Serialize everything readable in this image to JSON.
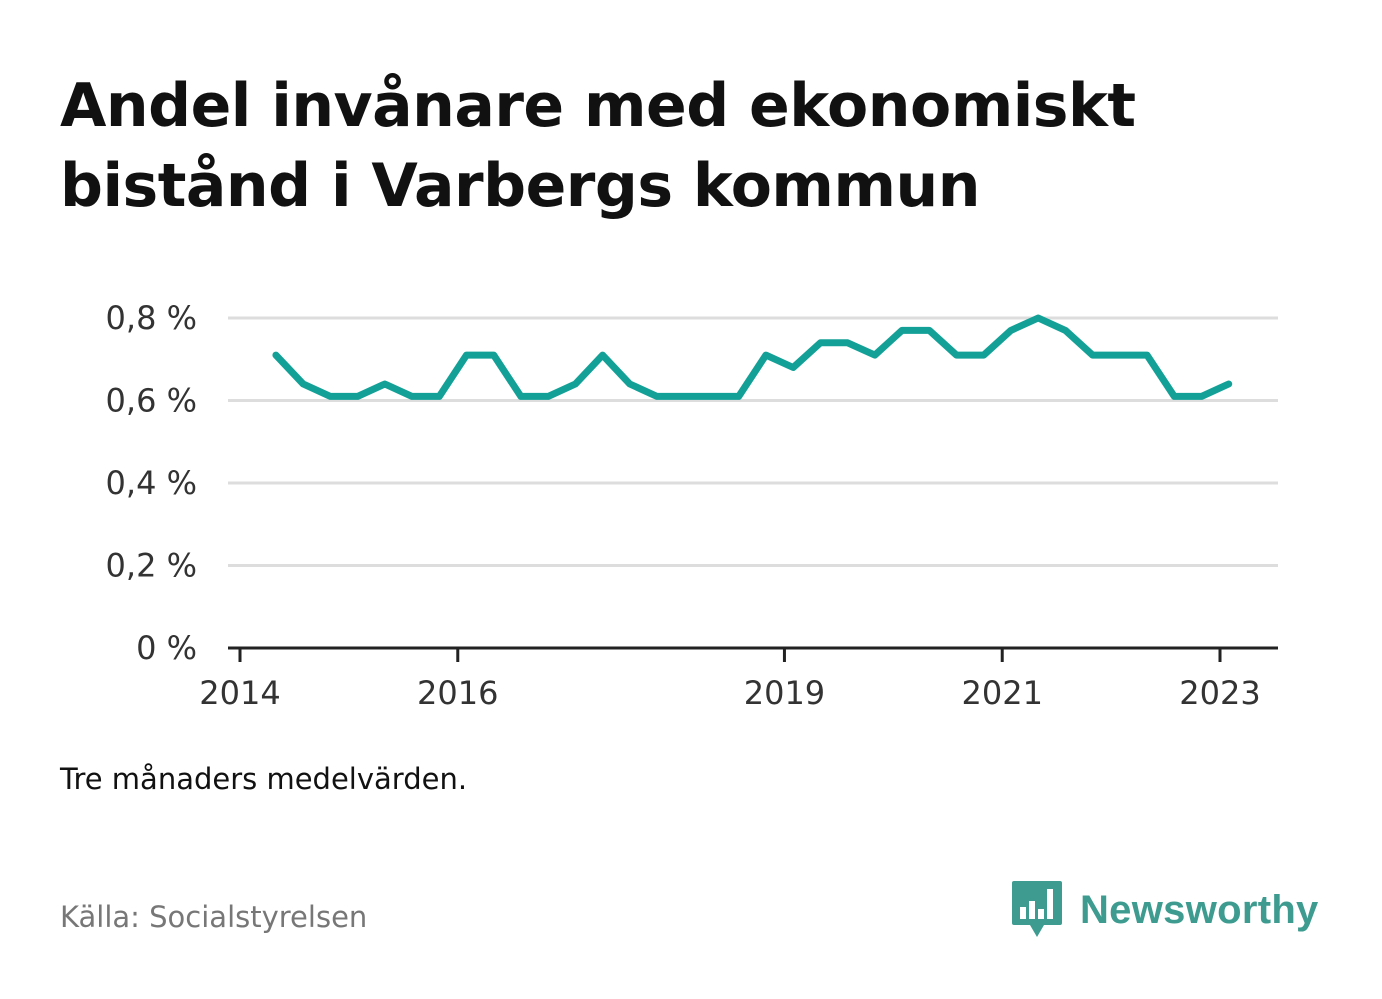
{
  "header": {
    "title_line1": "Andel invånare med ekonomiskt",
    "title_line2": "bistånd i Varbergs kommun"
  },
  "note": "Tre månaders medelvärden.",
  "source": "Källa: Socialstyrelsen",
  "brand": {
    "name": "Newsworthy",
    "color": "#3d9c8f",
    "icon": "bar-chart-speech-bubble-icon"
  },
  "chart_data": {
    "type": "line",
    "title": "Andel invånare med ekonomiskt bistånd i Varbergs kommun",
    "xlabel": "",
    "ylabel": "",
    "ylim": [
      0,
      0.8
    ],
    "yticks": [
      0,
      0.2,
      0.4,
      0.6,
      0.8
    ],
    "ytick_labels": [
      "0 %",
      "0,2 %",
      "0,4 %",
      "0,6 %",
      "0,8 %"
    ],
    "xlim": [
      2014.0,
      2023.75
    ],
    "xticks": [
      2014,
      2016,
      2019,
      2021,
      2023
    ],
    "xtick_labels": [
      "2014",
      "2016",
      "2019",
      "2021",
      "2023"
    ],
    "grid": true,
    "line_color": "#13a197",
    "series": [
      {
        "x": [
          2014.33,
          2014.58,
          2014.83,
          2015.08,
          2015.33,
          2015.58,
          2015.83,
          2016.08,
          2016.33,
          2016.58,
          2016.83,
          2017.08,
          2017.33,
          2017.58,
          2017.83,
          2018.08,
          2018.33,
          2018.58,
          2018.83,
          2019.08,
          2019.33,
          2019.58,
          2019.83,
          2020.08,
          2020.33,
          2020.58,
          2020.83,
          2021.08,
          2021.33,
          2021.58,
          2021.83,
          2022.08,
          2022.33,
          2022.58,
          2022.83,
          2023.08
        ],
        "values": [
          0.71,
          0.64,
          0.61,
          0.61,
          0.64,
          0.61,
          0.61,
          0.71,
          0.71,
          0.61,
          0.61,
          0.64,
          0.71,
          0.64,
          0.61,
          0.61,
          0.61,
          0.61,
          0.71,
          0.68,
          0.74,
          0.74,
          0.71,
          0.77,
          0.77,
          0.71,
          0.71,
          0.77,
          0.8,
          0.77,
          0.71,
          0.71,
          0.71,
          0.61,
          0.61,
          0.64
        ]
      }
    ]
  }
}
